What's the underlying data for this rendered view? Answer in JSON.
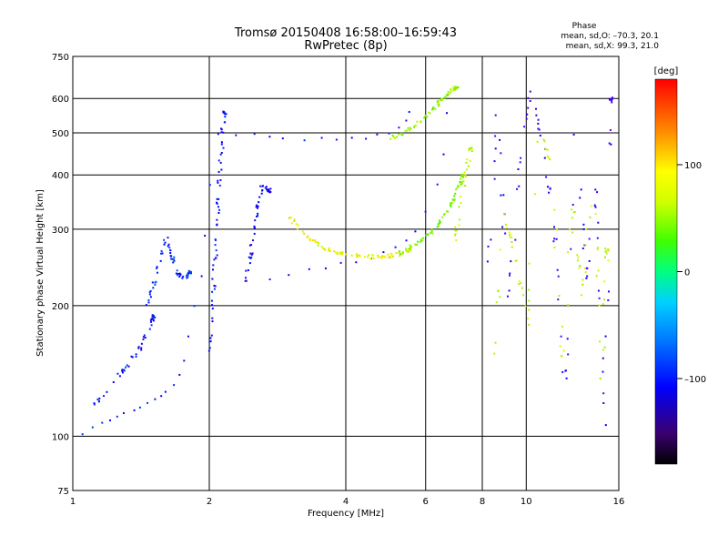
{
  "chart_data": {
    "type": "scatter",
    "title": "Tromsø 20150408 16:58:00–16:59:43",
    "subtitle": "RwPretec (8p)",
    "xlabel": "Frequency [MHz]",
    "ylabel": "Stationary phase Virtual Height [km]",
    "xscale": "log",
    "yscale": "log",
    "xlim": [
      1,
      16
    ],
    "ylim": [
      75,
      750
    ],
    "xticks": [
      1,
      2,
      4,
      6,
      8,
      10,
      16
    ],
    "xtick_labels": [
      "1",
      "2",
      "4",
      "6",
      "8",
      "10",
      "16"
    ],
    "yticks": [
      75,
      100,
      200,
      300,
      400,
      500,
      600,
      750
    ],
    "ytick_labels": [
      "75",
      "100",
      "200",
      "300",
      "400",
      "500",
      "600",
      "750"
    ],
    "grid": true,
    "phase_stats": {
      "heading": "Phase",
      "o_line": "mean, sd,O: –70.3, 20.1",
      "x_line": "mean, sd,X:  99.3, 21.0"
    },
    "colorbar": {
      "label": "[deg]",
      "range": [
        -180,
        180
      ],
      "ticks": [
        100,
        0,
        -100
      ],
      "tick_labels": [
        "100",
        "0",
        "–100"
      ]
    },
    "series": [
      {
        "x": [
          1.0,
          1.05,
          1.1,
          1.15,
          1.2,
          1.25,
          1.3,
          1.35,
          1.4,
          1.45,
          1.5,
          1.55,
          1.6,
          1.65,
          1.7,
          1.75,
          1.8,
          1.85,
          1.9,
          1.95,
          2.0
        ],
        "y": [
          97,
          101,
          105,
          108,
          110,
          112,
          114,
          116,
          118,
          120,
          122,
          124,
          127,
          132,
          138,
          150,
          172,
          200,
          235,
          290,
          380
        ],
        "phase": -80
      },
      {
        "x": [
          1.45,
          1.5,
          1.55,
          1.6,
          1.65,
          1.7,
          1.75,
          1.8
        ],
        "y": [
          200,
          225,
          260,
          290,
          260,
          238,
          232,
          240
        ],
        "phase": -78
      },
      {
        "x": [
          1.1,
          1.2,
          1.3,
          1.4,
          1.45,
          1.5
        ],
        "y": [
          118,
          130,
          145,
          160,
          175,
          190
        ],
        "phase": -82
      },
      {
        "x": [
          2.0,
          2.02,
          2.04,
          2.06,
          2.08,
          2.1,
          2.12,
          2.15
        ],
        "y": [
          150,
          190,
          230,
          280,
          340,
          400,
          470,
          560
        ],
        "phase": -85
      },
      {
        "x": [
          2.4,
          2.45,
          2.5,
          2.55,
          2.6,
          2.7
        ],
        "y": [
          230,
          260,
          300,
          340,
          380,
          370
        ],
        "phase": -88
      },
      {
        "x": [
          2.1,
          2.3,
          2.5,
          2.7,
          2.9,
          3.2,
          3.5,
          3.8,
          4.1,
          4.4,
          4.7,
          5.0,
          5.2,
          5.4,
          5.5
        ],
        "y": [
          500,
          500,
          495,
          490,
          488,
          486,
          485,
          485,
          487,
          490,
          495,
          505,
          520,
          540,
          560
        ],
        "phase": -90
      },
      {
        "x": [
          2.7,
          3.0,
          3.3,
          3.6,
          3.9,
          4.2,
          4.5,
          4.8,
          5.1,
          5.4,
          5.7,
          6.0,
          6.3,
          6.5,
          6.7
        ],
        "y": [
          233,
          238,
          242,
          246,
          250,
          255,
          260,
          266,
          275,
          285,
          300,
          330,
          380,
          450,
          560
        ],
        "phase": -95
      },
      {
        "x": [
          3.0,
          3.2,
          3.4,
          3.6,
          3.8,
          4.0,
          4.3,
          4.6,
          4.9,
          5.2,
          5.5
        ],
        "y": [
          320,
          295,
          282,
          272,
          266,
          263,
          261,
          260,
          261,
          264,
          270
        ],
        "phase": 110
      },
      {
        "x": [
          5.2,
          5.5,
          5.8,
          6.1,
          6.4,
          6.6,
          6.8,
          7.0,
          7.2
        ],
        "y": [
          265,
          272,
          282,
          295,
          310,
          325,
          345,
          370,
          400
        ],
        "phase": 78
      },
      {
        "x": [
          5.0,
          5.3,
          5.6,
          5.9,
          6.2,
          6.4,
          6.6,
          6.8,
          7.0
        ],
        "y": [
          490,
          500,
          520,
          540,
          570,
          590,
          610,
          630,
          640
        ],
        "phase": 85
      },
      {
        "x": [
          6.9,
          7.1,
          7.3,
          7.5
        ],
        "y": [
          280,
          330,
          400,
          460
        ],
        "phase": 100
      },
      {
        "x": [
          8.2,
          8.6,
          9.1,
          9.6,
          10.2,
          10.8,
          11.5,
          12.1,
          12.8,
          13.5,
          14.2,
          14.8,
          15.3
        ],
        "y": [
          250,
          560,
          200,
          430,
          640,
          480,
          300,
          120,
          560,
          230,
          380,
          105,
          600
        ],
        "phase": -100
      },
      {
        "x": [
          8.4,
          8.9,
          9.4,
          10.0,
          10.6,
          11.3,
          12.0,
          12.6,
          13.3,
          14.0,
          14.6,
          15.0
        ],
        "y": [
          140,
          330,
          260,
          180,
          540,
          420,
          150,
          350,
          210,
          470,
          130,
          270
        ],
        "phase": 100
      }
    ]
  }
}
